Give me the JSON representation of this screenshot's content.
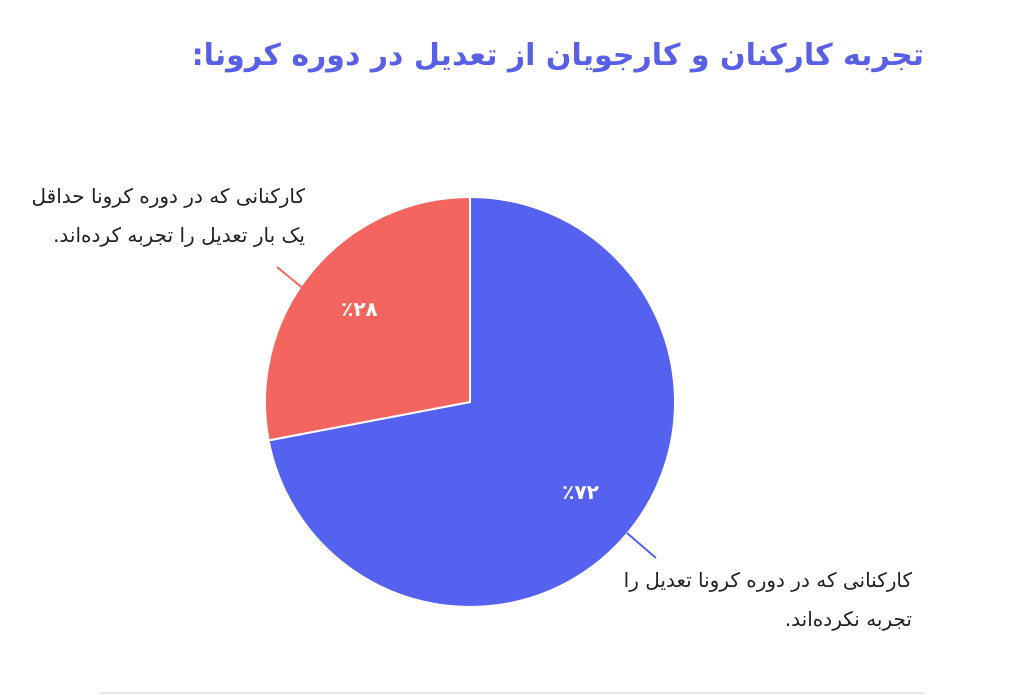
{
  "chart_data": {
    "type": "pie",
    "title": "تجربه کارکنان و کارجویان از تعدیل در دوره کرونا:",
    "categories": [
      "کارکنانی که در دوره کرونا تعدیل را تجربه نکرده‌اند.",
      "کارکنانی که در دوره کرونا حداقل یک بار تعدیل را تجربه کرده‌اند."
    ],
    "values": [
      72,
      28
    ],
    "value_labels": [
      "٪۷۲",
      "٪۲۸"
    ],
    "colors": [
      "#5561ef",
      "#f5655f"
    ]
  }
}
